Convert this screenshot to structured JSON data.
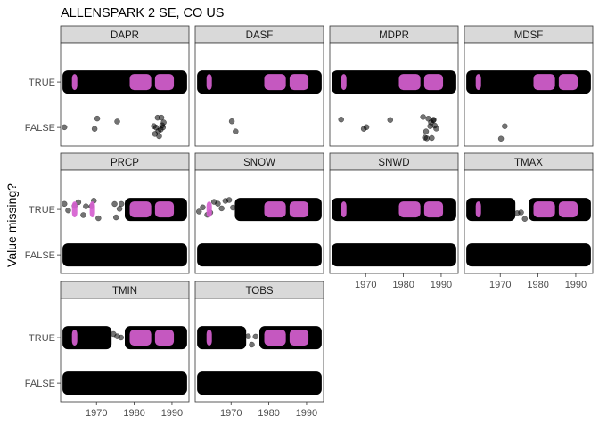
{
  "chart_data": {
    "type": "scatter",
    "title": "ALLENSPARK 2 SE, CO US",
    "ylabel": "Value missing?",
    "xlabel": "",
    "x_ticks": [
      1970,
      1980,
      1990
    ],
    "xlim": [
      1960.5,
      1994.5
    ],
    "y_categories": [
      "TRUE",
      "FALSE"
    ],
    "grid": false,
    "colors": {
      "observed_point": "#000000",
      "highlight_point": "#d65fd0",
      "strip_fill": "#d9d9d9",
      "panel_border": "#333333"
    },
    "panels": [
      {
        "name": "DAPR",
        "true_blocks": [
          [
            1961,
            1994
          ]
        ],
        "highlight_segments": [
          [
            1963.5,
            1964.5
          ],
          [
            1978.8,
            1984.5
          ],
          [
            1985.5,
            1990.5
          ]
        ],
        "false_points": [
          1961.5,
          1969.5,
          1970.2,
          1975.5,
          1985.2,
          1985.8,
          1986.2,
          1986.6,
          1987,
          1987.4,
          1987.8,
          1985.5,
          1986.4,
          1987.2,
          1987.6
        ]
      },
      {
        "name": "DASF",
        "true_blocks": [
          [
            1961,
            1994
          ]
        ],
        "highlight_segments": [
          [
            1963.5,
            1964.5
          ],
          [
            1978.8,
            1984.5
          ],
          [
            1985.5,
            1990.5
          ]
        ],
        "false_points": [
          1970.2,
          1971.2
        ]
      },
      {
        "name": "MDPR",
        "true_blocks": [
          [
            1961,
            1994
          ]
        ],
        "highlight_segments": [
          [
            1963.5,
            1964.5
          ],
          [
            1978.8,
            1984.5
          ],
          [
            1985.5,
            1990.5
          ]
        ],
        "false_points": [
          1963.5,
          1969.5,
          1970.2,
          1976.5,
          1985.2,
          1985.7,
          1986.2,
          1986.6,
          1987.1,
          1987.5,
          1987.9,
          1988.3,
          1988.7,
          1986,
          1987.3,
          1988
        ]
      },
      {
        "name": "MDSF",
        "true_blocks": [
          [
            1961,
            1994
          ]
        ],
        "highlight_segments": [
          [
            1963.5,
            1964.5
          ],
          [
            1978.8,
            1984.5
          ],
          [
            1985.5,
            1990.5
          ]
        ],
        "false_points": [
          1970.2,
          1971.2
        ]
      },
      {
        "name": "PRCP",
        "true_blocks": [
          [
            1977.5,
            1994
          ]
        ],
        "true_scatter": [
          1961.5,
          1962.5,
          1964.2,
          1965.2,
          1966.5,
          1967.2,
          1968.7,
          1969.3,
          1970.5,
          1974.8,
          1975.2,
          1976.1,
          1976.6
        ],
        "highlight_segments": [
          [
            1963.5,
            1964.5
          ],
          [
            1968.2,
            1969.2
          ],
          [
            1978.8,
            1984.5
          ],
          [
            1985.5,
            1990.5
          ]
        ],
        "false_blocks": [
          [
            1961,
            1994
          ]
        ]
      },
      {
        "name": "SNOW",
        "true_blocks": [
          [
            1971,
            1994
          ]
        ],
        "true_scatter": [
          1961.5,
          1962.5,
          1963.7,
          1964.5,
          1965.5,
          1966.5,
          1967.5,
          1968.5,
          1969.5,
          1970.5
        ],
        "highlight_segments": [
          [
            1963.5,
            1964.5
          ],
          [
            1978.8,
            1984.5
          ],
          [
            1985.5,
            1990.5
          ]
        ],
        "false_blocks": [
          [
            1961,
            1994
          ]
        ]
      },
      {
        "name": "SNWD",
        "true_blocks": [
          [
            1961,
            1994
          ]
        ],
        "highlight_segments": [
          [
            1963.5,
            1964.5
          ],
          [
            1978.8,
            1984.5
          ],
          [
            1985.5,
            1990.5
          ]
        ],
        "false_blocks": [
          [
            1961,
            1994
          ]
        ]
      },
      {
        "name": "TMAX",
        "true_blocks": [
          [
            1961,
            1974
          ],
          [
            1977.5,
            1994
          ]
        ],
        "true_scatter": [
          1974.5,
          1975.5,
          1976.5
        ],
        "highlight_segments": [
          [
            1963.5,
            1964.5
          ],
          [
            1978.8,
            1984.5
          ],
          [
            1985.5,
            1990.5
          ]
        ],
        "false_blocks": [
          [
            1961,
            1994
          ]
        ]
      },
      {
        "name": "TMIN",
        "true_blocks": [
          [
            1961,
            1974
          ],
          [
            1977.5,
            1994
          ]
        ],
        "true_scatter": [
          1974.5,
          1975.5,
          1976.5
        ],
        "highlight_segments": [
          [
            1963.5,
            1964.5
          ],
          [
            1978.8,
            1984.5
          ],
          [
            1985.5,
            1990.5
          ]
        ],
        "false_blocks": [
          [
            1961,
            1994
          ]
        ]
      },
      {
        "name": "TOBS",
        "true_blocks": [
          [
            1961,
            1974
          ],
          [
            1977.5,
            1994
          ]
        ],
        "true_scatter": [
          1974.5,
          1975.5,
          1976.5
        ],
        "highlight_segments": [
          [
            1963.5,
            1964.5
          ],
          [
            1978.8,
            1984.5
          ],
          [
            1985.5,
            1990.5
          ]
        ],
        "false_blocks": [
          [
            1961,
            1994
          ]
        ]
      }
    ]
  }
}
